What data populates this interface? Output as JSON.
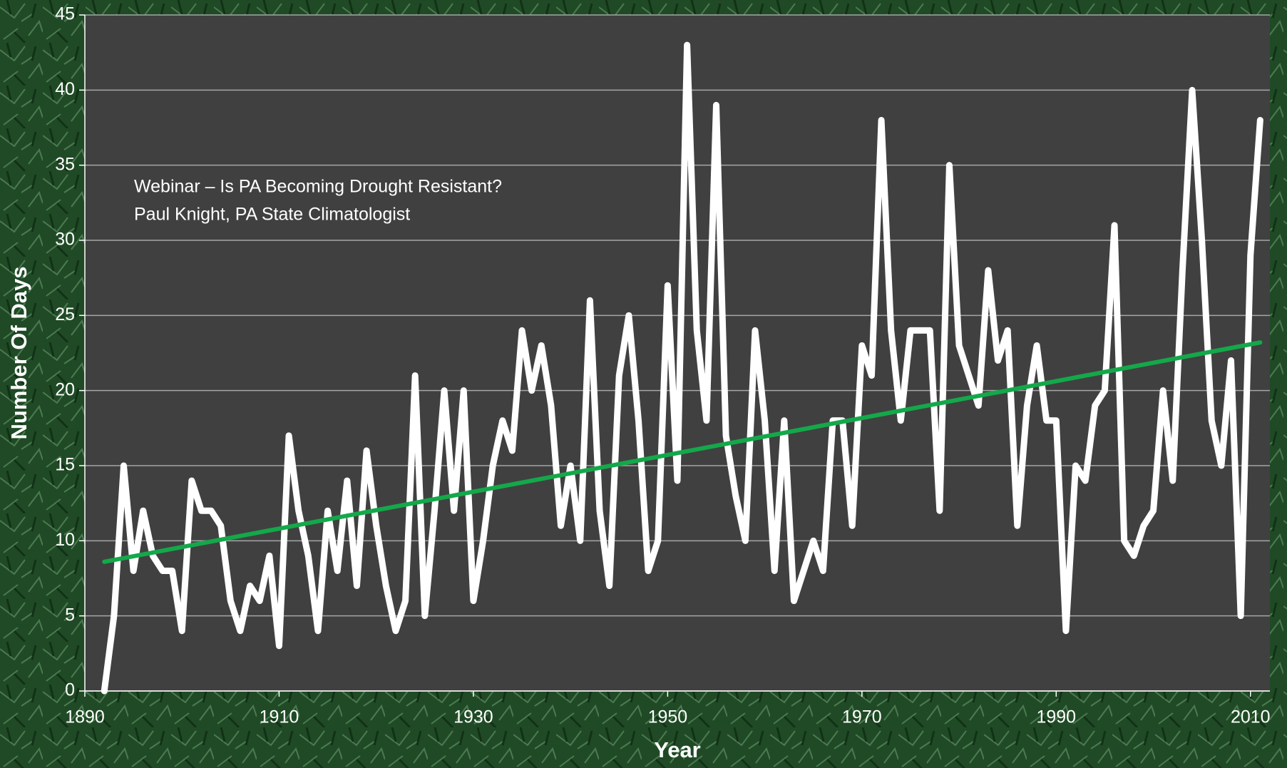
{
  "chart_data": {
    "type": "line",
    "x_label": "Year",
    "y_label": "Number Of Days",
    "annotations": [
      "Webinar – Is PA Becoming Drought Resistant?",
      "Paul Knight, PA State Climatologist"
    ],
    "x": [
      1892,
      1893,
      1894,
      1895,
      1896,
      1897,
      1898,
      1899,
      1900,
      1901,
      1902,
      1903,
      1904,
      1905,
      1906,
      1907,
      1908,
      1909,
      1910,
      1911,
      1912,
      1913,
      1914,
      1915,
      1916,
      1917,
      1918,
      1919,
      1920,
      1921,
      1922,
      1923,
      1924,
      1925,
      1926,
      1927,
      1928,
      1929,
      1930,
      1931,
      1932,
      1933,
      1934,
      1935,
      1936,
      1937,
      1938,
      1939,
      1940,
      1941,
      1942,
      1943,
      1944,
      1945,
      1946,
      1947,
      1948,
      1949,
      1950,
      1951,
      1952,
      1953,
      1954,
      1955,
      1956,
      1957,
      1958,
      1959,
      1960,
      1961,
      1962,
      1963,
      1964,
      1965,
      1966,
      1967,
      1968,
      1969,
      1970,
      1971,
      1972,
      1973,
      1974,
      1975,
      1976,
      1977,
      1978,
      1979,
      1980,
      1981,
      1982,
      1983,
      1984,
      1985,
      1986,
      1987,
      1988,
      1989,
      1990,
      1991,
      1992,
      1993,
      1994,
      1995,
      1996,
      1997,
      1998,
      1999,
      2000,
      2001,
      2002,
      2003,
      2004,
      2005,
      2006,
      2007,
      2008,
      2009,
      2010,
      2011
    ],
    "series": [
      {
        "color": "#ffffff",
        "values": [
          0,
          5,
          15,
          8,
          12,
          9,
          8,
          8,
          4,
          14,
          12,
          12,
          11,
          6,
          4,
          7,
          6,
          9,
          3,
          17,
          12,
          9,
          4,
          12,
          8,
          14,
          7,
          16,
          11,
          7,
          4,
          6,
          21,
          5,
          12,
          20,
          12,
          20,
          6,
          10,
          15,
          18,
          16,
          24,
          20,
          23,
          19,
          11,
          15,
          10,
          26,
          12,
          7,
          21,
          25,
          18,
          8,
          10,
          27,
          14,
          43,
          24,
          18,
          39,
          17,
          13,
          10,
          24,
          18,
          8,
          18,
          6,
          8,
          10,
          8,
          18,
          18,
          11,
          23,
          21,
          38,
          24,
          18,
          24,
          24,
          24,
          12,
          35,
          23,
          21,
          19,
          28,
          22,
          24,
          11,
          19,
          23,
          18,
          18,
          4,
          15,
          14,
          19,
          20,
          31,
          10,
          9,
          11,
          12,
          20,
          14,
          28,
          40,
          30,
          18,
          15,
          22,
          5,
          29,
          38
        ]
      }
    ],
    "trend": {
      "color": "#14a84a",
      "x": [
        1892,
        2011
      ],
      "values": [
        8.6,
        23.2
      ]
    },
    "xlim": [
      1890,
      2012
    ],
    "xticks": [
      1890,
      1910,
      1930,
      1950,
      1970,
      1990,
      2010
    ],
    "ylim": [
      0,
      45
    ],
    "yticks": [
      0,
      5,
      10,
      15,
      20,
      25,
      30,
      35,
      40,
      45
    ],
    "grid": true
  }
}
